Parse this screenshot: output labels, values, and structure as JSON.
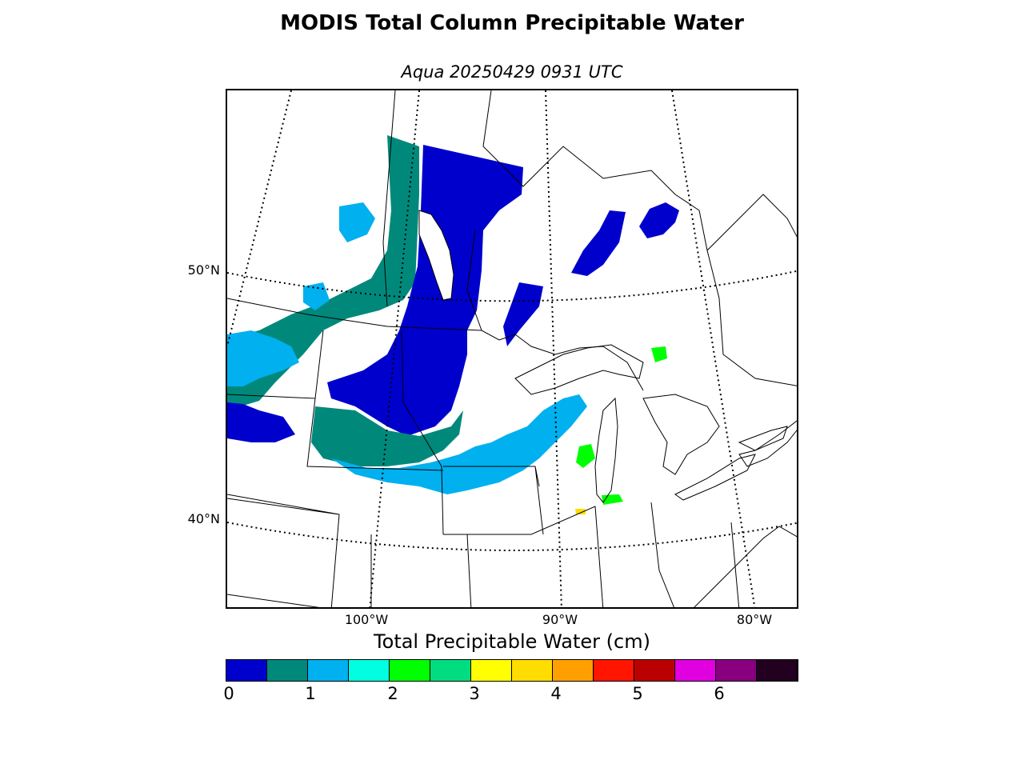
{
  "title": "MODIS Total Column Precipitable Water",
  "subtitle": "Aqua 20250429 0931 UTC",
  "map": {
    "lat_labels": [
      "50°N",
      "40°N"
    ],
    "lon_labels": [
      "100°W",
      "90°W",
      "80°W"
    ]
  },
  "colorbar": {
    "title": "Total Precipitable Water (cm)",
    "ticks": [
      "0",
      "1",
      "2",
      "3",
      "4",
      "5",
      "6"
    ],
    "colors": [
      "#0000cc",
      "#00897b",
      "#00b0ef",
      "#00ffe0",
      "#00ff00",
      "#00dd80",
      "#ffff00",
      "#ffdd00",
      "#ffa000",
      "#ff1500",
      "#bb0000",
      "#e000e0",
      "#880080",
      "#220020"
    ]
  },
  "chart_data": {
    "type": "heatmap",
    "title": "MODIS Total Column Precipitable Water",
    "subtitle": "Aqua 20250429 0931 UTC",
    "colorbar_label": "Total Precipitable Water (cm)",
    "colorbar_range": [
      0,
      7
    ],
    "lat_ticks": [
      "50°N",
      "40°N"
    ],
    "lon_ticks": [
      "100°W",
      "90°W",
      "80°W"
    ]
  }
}
